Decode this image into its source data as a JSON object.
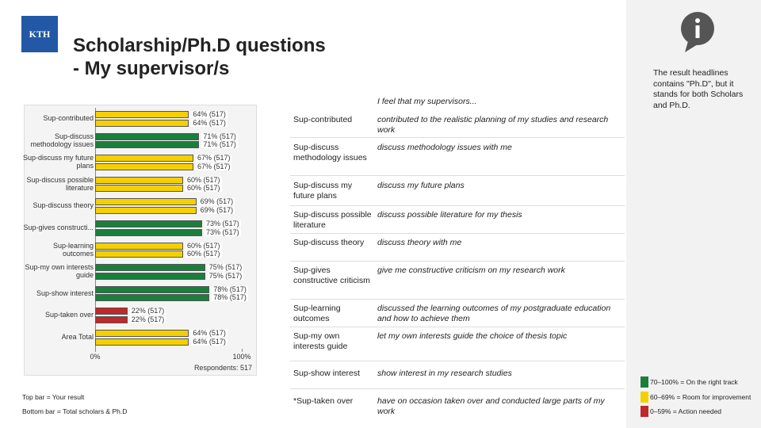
{
  "header": {
    "logo_text": "KTH",
    "title_lines": [
      "Scholarship/Ph.D questions",
      "- My supervisor/s"
    ]
  },
  "chart_data": {
    "type": "bar",
    "orientation": "horizontal",
    "categories": [
      "Sup-contributed",
      "Sup-discuss methodology issues",
      "Sup-discuss my future plans",
      "Sup-discuss possible literature",
      "Sup-discuss theory",
      "Sup-gives constructi...",
      "Sup-learning outcomes",
      "Sup-my own interests guide",
      "Sup-show interest",
      "Sup-taken over",
      "Area Total"
    ],
    "series": [
      {
        "name": "Top bar = Your result",
        "values": [
          64,
          71,
          67,
          60,
          69,
          73,
          60,
          75,
          78,
          22,
          64
        ],
        "value_labels": [
          "64% (517)",
          "71% (517)",
          "67% (517)",
          "60% (517)",
          "69% (517)",
          "73% (517)",
          "60% (517)",
          "75% (517)",
          "78% (517)",
          "22% (517)",
          "64% (517)"
        ],
        "colors": [
          "#f5d000",
          "#1a7f3c",
          "#f5d000",
          "#f5d000",
          "#f5d000",
          "#1a7f3c",
          "#f5d000",
          "#1a7f3c",
          "#1a7f3c",
          "#c0282a",
          "#f5d000"
        ]
      },
      {
        "name": "Bottom bar = Total scholars & Ph.D",
        "values": [
          64,
          71,
          67,
          60,
          69,
          73,
          60,
          75,
          78,
          22,
          64
        ],
        "value_labels": [
          "64% (517)",
          "71% (517)",
          "67% (517)",
          "60% (517)",
          "69% (517)",
          "73% (517)",
          "60% (517)",
          "75% (517)",
          "78% (517)",
          "22% (517)",
          "64% (517)"
        ],
        "colors": [
          "#f5d000",
          "#1a7f3c",
          "#f5d000",
          "#f5d000",
          "#f5d000",
          "#1a7f3c",
          "#f5d000",
          "#1a7f3c",
          "#1a7f3c",
          "#c0282a",
          "#f5d000"
        ]
      }
    ],
    "xlim": [
      0,
      100
    ],
    "xticks": [
      {
        "value": 0,
        "label": "0%"
      },
      {
        "value": 100,
        "label": "100%"
      }
    ],
    "footnote": "Respondents: 517"
  },
  "table": {
    "header": "I feel that my supervisors...",
    "rows": [
      [
        "Sup-contributed",
        "contributed to the realistic planning of my studies and research work"
      ],
      [
        "Sup-discuss methodology issues",
        "discuss methodology issues with me"
      ],
      [
        "Sup-discuss my future plans",
        "discuss my future plans"
      ],
      [
        "Sup-discuss possible literature",
        "discuss possible literature for my thesis"
      ],
      [
        "Sup-discuss theory",
        "discuss theory with me"
      ],
      [
        "Sup-gives constructive criticism",
        "give me constructive criticism on my research work"
      ],
      [
        "Sup-learning outcomes",
        "discussed the learning outcomes of my postgraduate education and how to achieve them"
      ],
      [
        "Sup-my own interests guide",
        "let my own interests guide the choice of thesis topic"
      ],
      [
        "Sup-show interest",
        "show interest in my research studies"
      ],
      [
        "*Sup-taken over",
        "have on occasion taken over and conducted large parts of my work"
      ]
    ]
  },
  "info_note": "The result headlines contains \"Ph.D\", but it stands for both Scholars and Ph.D.",
  "legend": [
    {
      "color": "#1a7f3c",
      "label": "70–100% = On the right track"
    },
    {
      "color": "#f5d000",
      "label": "60–69% = Room for improvement"
    },
    {
      "color": "#c0282a",
      "label": "0–59% = Action needed"
    }
  ]
}
